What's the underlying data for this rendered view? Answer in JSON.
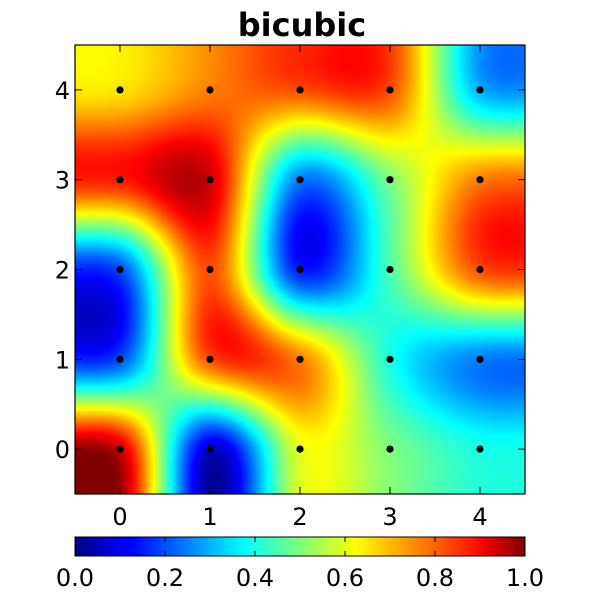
{
  "chart_data": {
    "type": "heatmap",
    "title": "bicubic",
    "xlabel": "",
    "ylabel": "",
    "interpolation": "bicubic",
    "colormap": "jet",
    "x_ticks": [
      "0",
      "1",
      "2",
      "3",
      "4"
    ],
    "y_ticks": [
      "0",
      "1",
      "2",
      "3",
      "4"
    ],
    "xlim": [
      -0.5,
      4.5
    ],
    "ylim": [
      -0.5,
      4.5
    ],
    "grid": false,
    "colorbar": {
      "orientation": "horizontal",
      "range": [
        0.0,
        1.0
      ],
      "tick_labels": [
        "0.0",
        "0.2",
        "0.4",
        "0.6",
        "0.8",
        "1.0"
      ],
      "tick_values": [
        0.0,
        0.2,
        0.4,
        0.6,
        0.8,
        1.0
      ]
    },
    "grid_values": [
      [
        0.92,
        0.08,
        0.6,
        0.5,
        0.4
      ],
      [
        0.2,
        0.8,
        0.75,
        0.4,
        0.25
      ],
      [
        0.2,
        0.8,
        0.15,
        0.45,
        0.8
      ],
      [
        0.85,
        0.92,
        0.25,
        0.5,
        0.75
      ],
      [
        0.65,
        0.75,
        0.8,
        0.8,
        0.3
      ]
    ],
    "points": [
      {
        "x": 0,
        "y": 0
      },
      {
        "x": 1,
        "y": 0
      },
      {
        "x": 2,
        "y": 0
      },
      {
        "x": 3,
        "y": 0
      },
      {
        "x": 4,
        "y": 0
      },
      {
        "x": 0,
        "y": 1
      },
      {
        "x": 1,
        "y": 1
      },
      {
        "x": 2,
        "y": 1
      },
      {
        "x": 3,
        "y": 1
      },
      {
        "x": 4,
        "y": 1
      },
      {
        "x": 0,
        "y": 2
      },
      {
        "x": 1,
        "y": 2
      },
      {
        "x": 2,
        "y": 2
      },
      {
        "x": 3,
        "y": 2
      },
      {
        "x": 4,
        "y": 2
      },
      {
        "x": 0,
        "y": 3
      },
      {
        "x": 1,
        "y": 3
      },
      {
        "x": 2,
        "y": 3
      },
      {
        "x": 3,
        "y": 3
      },
      {
        "x": 4,
        "y": 3
      },
      {
        "x": 0,
        "y": 4
      },
      {
        "x": 1,
        "y": 4
      },
      {
        "x": 2,
        "y": 4
      },
      {
        "x": 3,
        "y": 4
      },
      {
        "x": 4,
        "y": 4
      }
    ]
  }
}
